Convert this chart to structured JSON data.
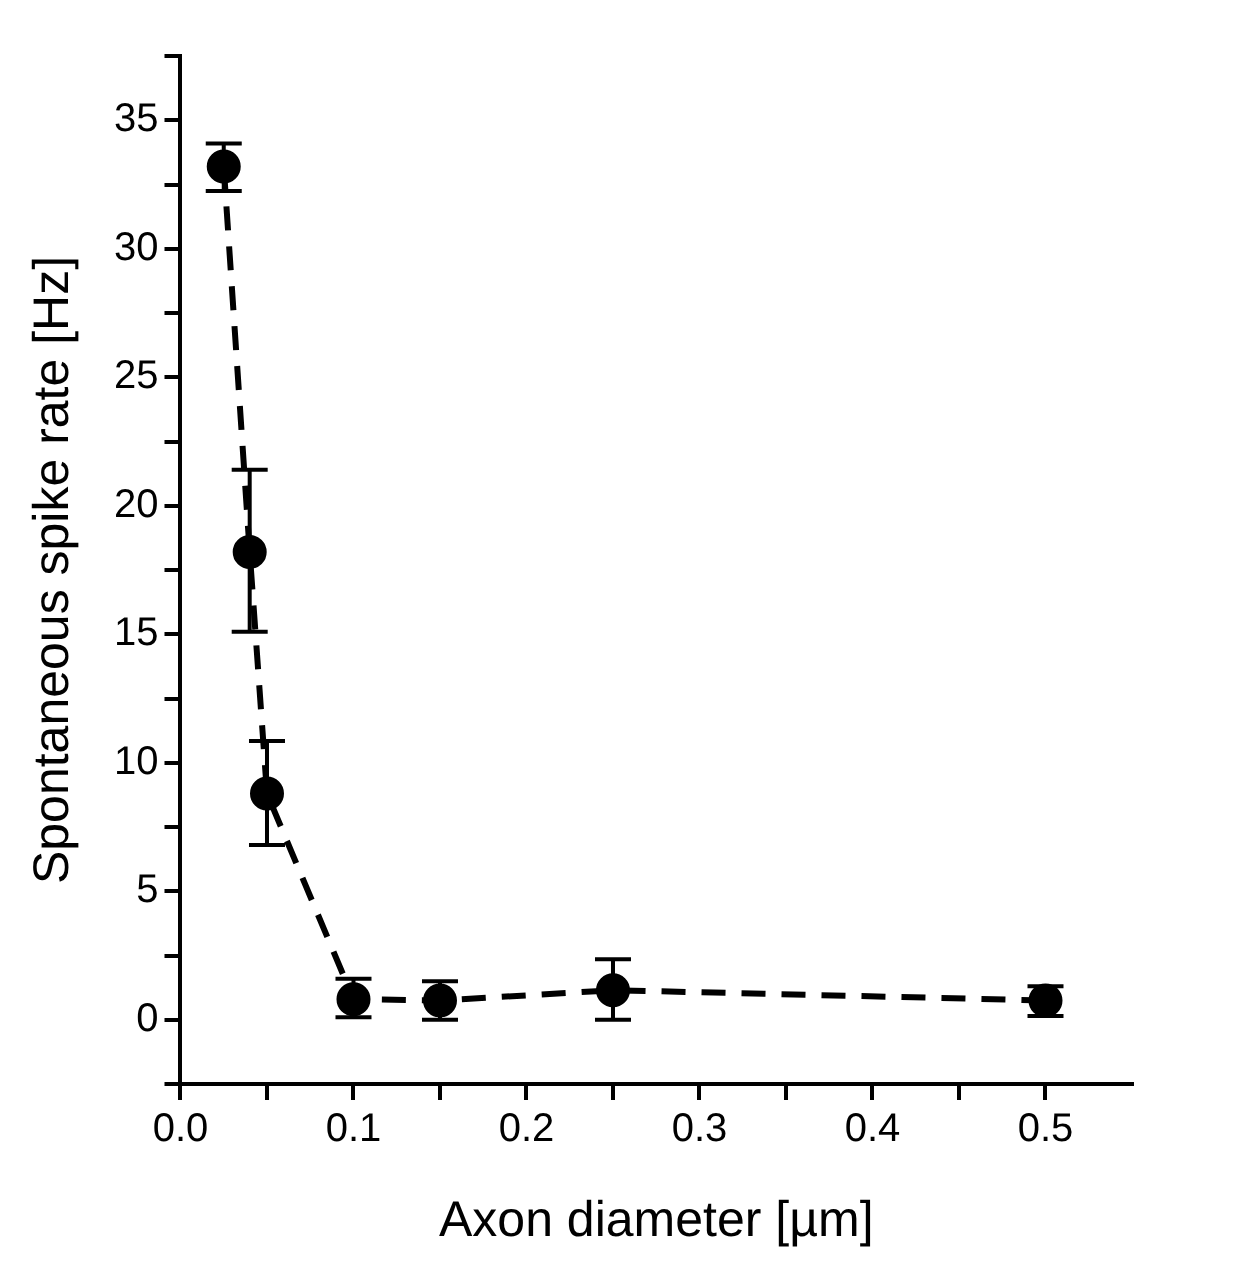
{
  "chart_data": {
    "type": "line",
    "xlabel": "Axon diameter [µm]",
    "ylabel": "Spontaneous spike rate [Hz]",
    "x": [
      0.025,
      0.04,
      0.05,
      0.1,
      0.15,
      0.25,
      0.5
    ],
    "series": [
      {
        "color": "#000000",
        "values": [
          33.2,
          18.2,
          8.8,
          0.8,
          0.75,
          1.15,
          0.75
        ],
        "errors": [
          [
            32.25,
            34.1
          ],
          [
            15.1,
            21.4
          ],
          [
            6.8,
            10.85
          ],
          [
            0.1,
            1.6
          ],
          [
            0,
            1.5
          ],
          [
            0,
            2.35
          ],
          [
            0.15,
            1.3
          ]
        ]
      }
    ],
    "xlim": [
      0,
      0.55
    ],
    "xticks": [
      {
        "value": 0,
        "label": "0.0"
      },
      {
        "value": 0.05,
        "label": null
      },
      {
        "value": 0.1,
        "label": "0.1"
      },
      {
        "value": 0.15,
        "label": null
      },
      {
        "value": 0.2,
        "label": "0.2"
      },
      {
        "value": 0.25,
        "label": null
      },
      {
        "value": 0.3,
        "label": "0.3"
      },
      {
        "value": 0.35,
        "label": null
      },
      {
        "value": 0.4,
        "label": "0.4"
      },
      {
        "value": 0.45,
        "label": null
      },
      {
        "value": 0.5,
        "label": "0.5"
      }
    ],
    "ylim": [
      -2.5,
      37.5
    ],
    "yticks": [
      {
        "value": -2.5,
        "label": null
      },
      0,
      {
        "value": 2.5,
        "label": null
      },
      5,
      {
        "value": 7.5,
        "label": null
      },
      10,
      {
        "value": 12.5,
        "label": null
      },
      15,
      {
        "value": 17.5,
        "label": null
      },
      20,
      {
        "value": 22.5,
        "label": null
      },
      25,
      {
        "value": 27.5,
        "label": null
      },
      30,
      {
        "value": 32.5,
        "label": null
      },
      35,
      {
        "value": 37.5,
        "label": null
      }
    ],
    "grid": false,
    "legend": false,
    "marker": "circle",
    "line_style": "dashed"
  }
}
